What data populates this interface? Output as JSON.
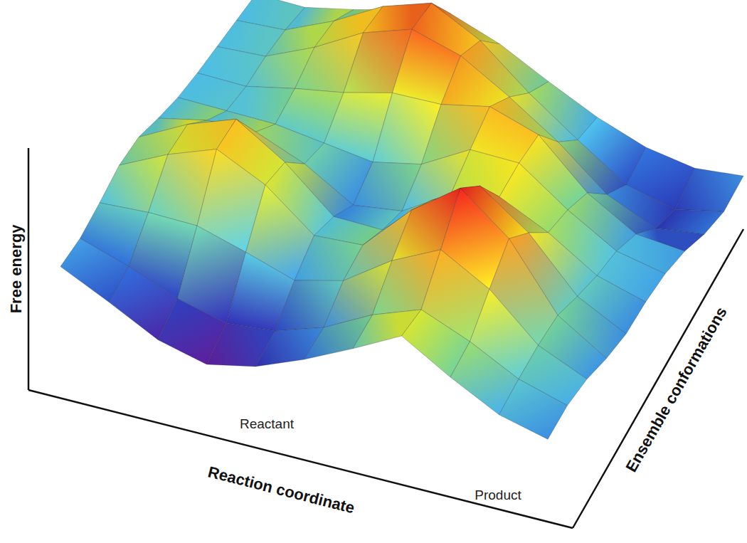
{
  "chart_data": {
    "type": "surface",
    "x_label": "Reaction coordinate",
    "y_label": "Ensemble conformations",
    "z_label": "Free energy",
    "annotations": [
      "Reactant",
      "Product"
    ],
    "x": [
      0,
      0.1,
      0.2,
      0.3,
      0.4,
      0.5,
      0.6,
      0.7,
      0.8,
      0.9,
      1
    ],
    "y": [
      0,
      0.1,
      0.2,
      0.3,
      0.4,
      0.5,
      0.6,
      0.7,
      0.8,
      0.9,
      1
    ],
    "z": [
      [
        2.5,
        1.5,
        0.4,
        0.0,
        0.8,
        2.1,
        3.6,
        5.2,
        3.9,
        2.8,
        2.4
      ],
      [
        2.6,
        2.0,
        1.2,
        0.8,
        1.3,
        2.4,
        4.0,
        5.2,
        4.4,
        3.3,
        2.8
      ],
      [
        3.1,
        3.5,
        3.7,
        3.2,
        2.6,
        3.5,
        5.5,
        7.0,
        5.8,
        3.7,
        2.8
      ],
      [
        3.7,
        5.2,
        6.4,
        5.4,
        3.6,
        4.0,
        6.8,
        8.9,
        7.1,
        3.9,
        2.5
      ],
      [
        3.8,
        5.4,
        6.6,
        5.2,
        3.2,
        3.4,
        5.9,
        7.6,
        6.0,
        3.5,
        2.4
      ],
      [
        3.4,
        4.2,
        4.5,
        3.7,
        2.4,
        3.0,
        4.8,
        5.6,
        4.6,
        3.2,
        2.7
      ],
      [
        3.1,
        3.3,
        3.5,
        3.4,
        3.3,
        4.1,
        5.8,
        6.0,
        4.4,
        3.1,
        2.8
      ],
      [
        3.0,
        3.2,
        4.0,
        4.7,
        5.6,
        5.9,
        6.7,
        6.1,
        3.9,
        2.6,
        2.6
      ],
      [
        3.0,
        3.4,
        4.8,
        6.5,
        7.6,
        7.1,
        5.8,
        4.3,
        2.4,
        1.5,
        2.1
      ],
      [
        3.0,
        3.4,
        4.8,
        6.5,
        7.6,
        6.5,
        4.6,
        3.0,
        1.5,
        1.1,
        1.9
      ],
      [
        3.0,
        3.2,
        4.0,
        4.9,
        5.6,
        4.9,
        3.8,
        2.8,
        2.1,
        1.9,
        2.4
      ]
    ],
    "xlim": [
      0,
      1
    ],
    "ylim": [
      0,
      1
    ],
    "zlim": [
      0,
      13
    ],
    "grid": true,
    "tick_labels": false
  }
}
